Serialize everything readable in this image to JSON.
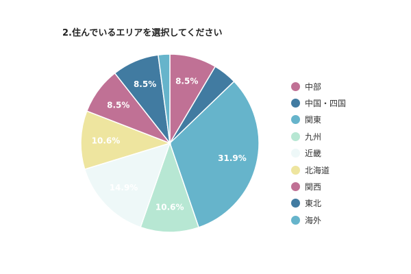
{
  "chart_data": {
    "type": "pie",
    "title": "2.住んでいるエリアを選択してください",
    "legend_position": "right",
    "start": "top",
    "direction": "clockwise",
    "slices": [
      {
        "name": "中部",
        "value": 8.5,
        "label": "8.5%",
        "color": "#c07195",
        "label_color": "#ffffff"
      },
      {
        "name": "中国・四国",
        "value": 4.3,
        "label": "",
        "color": "#417ba1",
        "label_color": "#ffffff"
      },
      {
        "name": "関東",
        "value": 31.9,
        "label": "31.9%",
        "color": "#66b4cb",
        "label_color": "#ffffff"
      },
      {
        "name": "九州",
        "value": 10.6,
        "label": "10.6%",
        "color": "#b7e7d3",
        "label_color": "#ffffff"
      },
      {
        "name": "近畿",
        "value": 14.9,
        "label": "14.9%",
        "color": "#eef8f8",
        "label_color": "#ffffff"
      },
      {
        "name": "北海道",
        "value": 10.6,
        "label": "10.6%",
        "color": "#eee59f",
        "label_color": "#ffffff"
      },
      {
        "name": "関西",
        "value": 8.5,
        "label": "8.5%",
        "color": "#c07195",
        "label_color": "#ffffff"
      },
      {
        "name": "東北",
        "value": 8.5,
        "label": "8.5%",
        "color": "#417ba1",
        "label_color": "#ffffff"
      },
      {
        "name": "海外",
        "value": 2.1,
        "label": "",
        "color": "#66b4cb",
        "label_color": "#ffffff"
      }
    ]
  }
}
